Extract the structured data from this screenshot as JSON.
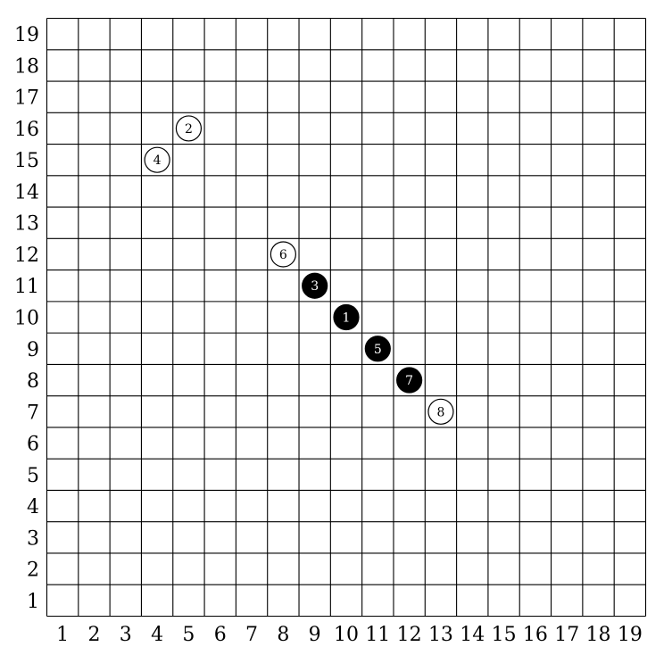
{
  "board": {
    "columns": [
      "1",
      "2",
      "3",
      "4",
      "5",
      "6",
      "7",
      "8",
      "9",
      "10",
      "11",
      "12",
      "13",
      "14",
      "15",
      "16",
      "17",
      "18",
      "19"
    ],
    "rows": [
      "1",
      "2",
      "3",
      "4",
      "5",
      "6",
      "7",
      "8",
      "9",
      "10",
      "11",
      "12",
      "13",
      "14",
      "15",
      "16",
      "17",
      "18",
      "19"
    ]
  },
  "stones": [
    {
      "move": "1",
      "col": 10,
      "row": 10,
      "color": "black"
    },
    {
      "move": "2",
      "col": 5,
      "row": 16,
      "color": "white"
    },
    {
      "move": "3",
      "col": 9,
      "row": 11,
      "color": "black"
    },
    {
      "move": "4",
      "col": 4,
      "row": 15,
      "color": "white"
    },
    {
      "move": "5",
      "col": 11,
      "row": 9,
      "color": "black"
    },
    {
      "move": "6",
      "col": 8,
      "row": 12,
      "color": "white"
    },
    {
      "move": "7",
      "col": 12,
      "row": 8,
      "color": "black"
    },
    {
      "move": "8",
      "col": 13,
      "row": 7,
      "color": "white"
    }
  ]
}
